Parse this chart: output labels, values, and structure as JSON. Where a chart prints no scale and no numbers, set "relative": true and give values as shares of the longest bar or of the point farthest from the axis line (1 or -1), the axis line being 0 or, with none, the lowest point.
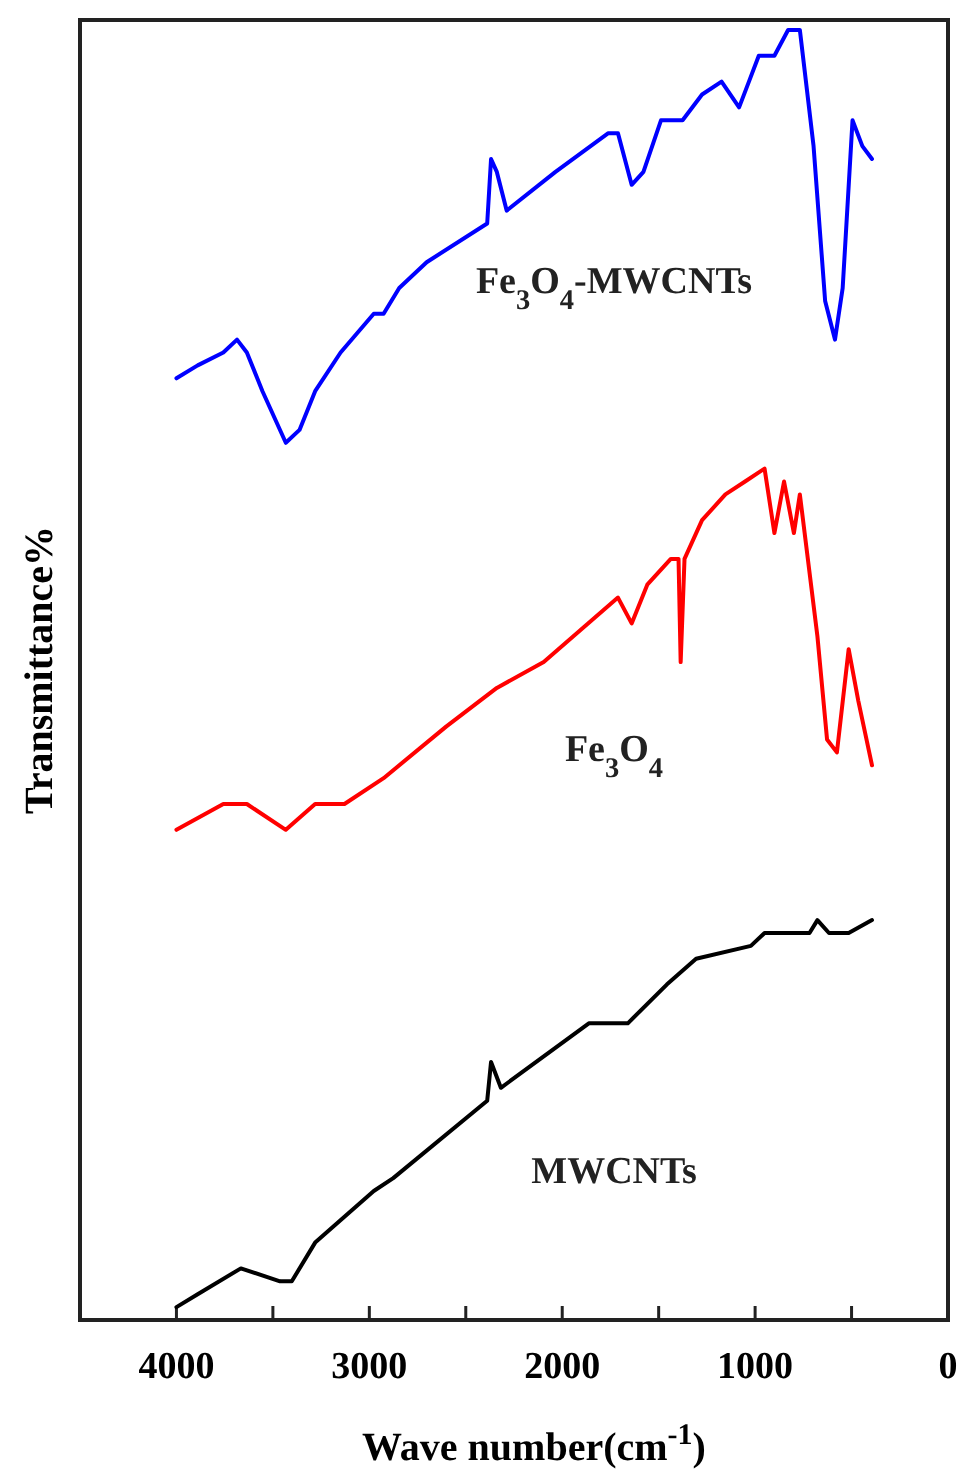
{
  "chart_data": {
    "type": "line",
    "xlabel": "Wave number(cm$^{-1}$)",
    "ylabel": "Transmittance%",
    "relative": true,
    "xlim": [
      4500,
      0
    ],
    "xticks": [
      4000,
      {
        "value": 3500,
        "label": null
      },
      3000,
      {
        "value": 2500,
        "label": null
      },
      2000,
      {
        "value": 1500,
        "label": null
      },
      1000,
      {
        "value": 500,
        "label": null
      },
      0
    ],
    "grid": false,
    "legend": false,
    "marker": "none",
    "line_style": "solid",
    "series": [
      {
        "name": "Fe$_{3}$O$_{4}$-MWCNTs",
        "color": "#0000ff",
        "x": [
          4000,
          3890,
          3757,
          3686,
          3635,
          3554,
          3433,
          3362,
          3281,
          3149,
          2977,
          2926,
          2845,
          2703,
          2389,
          2369,
          2339,
          2288,
          2035,
          1761,
          1711,
          1640,
          1579,
          1488,
          1458,
          1376,
          1275,
          1174,
          1083,
          1032,
          981,
          900,
          829,
          768,
          697,
          637,
          586,
          546,
          495,
          444,
          394
        ],
        "values": [
          0.73,
          0.74,
          0.75,
          0.76,
          0.75,
          0.72,
          0.68,
          0.69,
          0.72,
          0.75,
          0.78,
          0.78,
          0.8,
          0.82,
          0.85,
          0.9,
          0.89,
          0.86,
          0.89,
          0.92,
          0.92,
          0.88,
          0.89,
          0.93,
          0.93,
          0.93,
          0.95,
          0.96,
          0.94,
          0.96,
          0.98,
          0.98,
          1.0,
          1.0,
          0.91,
          0.79,
          0.76,
          0.8,
          0.93,
          0.91,
          0.9
        ]
      },
      {
        "name": "Fe$_{3}$O$_{4}$",
        "color": "#ff0000",
        "x": [
          4000,
          3757,
          3635,
          3433,
          3281,
          3129,
          2926,
          2602,
          2339,
          2096,
          1711,
          1640,
          1559,
          1437,
          1397,
          1386,
          1366,
          1275,
          1154,
          1052,
          951,
          900,
          850,
          799,
          768,
          677,
          627,
          576,
          515,
          465,
          394
        ],
        "values": [
          0.38,
          0.4,
          0.4,
          0.38,
          0.4,
          0.4,
          0.42,
          0.46,
          0.49,
          0.51,
          0.56,
          0.54,
          0.57,
          0.59,
          0.59,
          0.51,
          0.59,
          0.62,
          0.64,
          0.65,
          0.66,
          0.61,
          0.65,
          0.61,
          0.64,
          0.53,
          0.45,
          0.44,
          0.52,
          0.48,
          0.43
        ]
      },
      {
        "name": "MWCNTs",
        "color": "#000000",
        "x": [
          4000,
          3890,
          3666,
          3463,
          3402,
          3281,
          2977,
          2876,
          2389,
          2369,
          2318,
          1862,
          1660,
          1458,
          1306,
          1022,
          951,
          718,
          677,
          617,
          515,
          394
        ],
        "values": [
          0.01,
          0.02,
          0.04,
          0.03,
          0.03,
          0.06,
          0.1,
          0.11,
          0.17,
          0.2,
          0.18,
          0.23,
          0.23,
          0.26,
          0.28,
          0.29,
          0.3,
          0.3,
          0.31,
          0.3,
          0.3,
          0.31
        ]
      }
    ]
  }
}
